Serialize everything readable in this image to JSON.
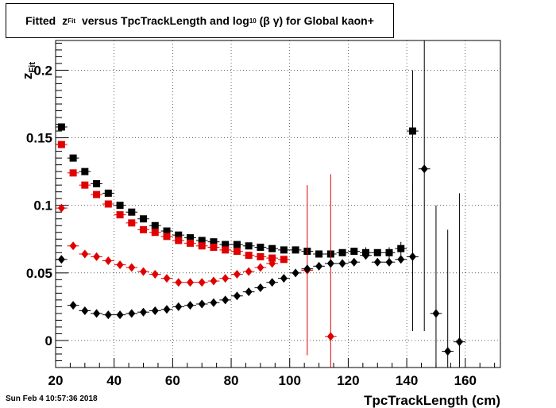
{
  "title": {
    "part1": "Fitted",
    "var": "z",
    "var_sub": "Fit",
    "part2": "versus TpcTrackLength and log",
    "log_sub": "10",
    "part3": "(β γ) for Global kaon+"
  },
  "datestamp": "Sun Feb  4 10:57:36 2018",
  "colors": {
    "black": "#000000",
    "red": "#e00000"
  },
  "chart_data": {
    "type": "scatter",
    "title": "Fitted zFit versus TpcTrackLength and log10 (β γ) for Global kaon+",
    "xlabel": "TpcTrackLength (cm)",
    "ylabel": "z",
    "ylabel_sub": "Fit",
    "xlim": [
      20,
      172
    ],
    "ylim": [
      -0.02,
      0.222
    ],
    "grid": true,
    "x_ticks": [
      20,
      40,
      60,
      80,
      100,
      120,
      140,
      160
    ],
    "y_ticks": [
      0,
      0.05,
      0.1,
      0.15,
      0.2
    ],
    "y_tick_labels": [
      "0",
      "0.05",
      "0.1",
      "0.15",
      "0.2"
    ],
    "series": [
      {
        "marker": "square",
        "color": "#000000",
        "x": [
          22,
          26,
          30,
          34,
          38,
          42,
          46,
          50,
          54,
          58,
          62,
          66,
          70,
          74,
          78,
          82,
          86,
          90,
          94,
          98,
          102,
          106,
          110,
          114,
          118,
          122,
          126,
          130,
          134,
          138,
          142
        ],
        "y": [
          0.158,
          0.135,
          0.125,
          0.116,
          0.109,
          0.1,
          0.095,
          0.09,
          0.085,
          0.081,
          0.078,
          0.076,
          0.074,
          0.073,
          0.071,
          0.071,
          0.07,
          0.069,
          0.068,
          0.067,
          0.067,
          0.066,
          0.064,
          0.064,
          0.065,
          0.066,
          0.065,
          0.065,
          0.065,
          0.068,
          0.155
        ],
        "err": [
          0,
          0,
          0,
          0,
          0,
          0,
          0,
          0,
          0,
          0,
          0,
          0,
          0,
          0,
          0,
          0,
          0,
          0,
          0,
          0,
          0,
          0,
          0,
          0,
          0,
          0,
          0.004,
          0,
          0.004,
          0.005,
          0.045
        ]
      },
      {
        "marker": "square",
        "color": "#e00000",
        "x": [
          22,
          26,
          30,
          34,
          38,
          42,
          46,
          50,
          54,
          58,
          62,
          66,
          70,
          74,
          78,
          82,
          86,
          90,
          94,
          98
        ],
        "y": [
          0.145,
          0.124,
          0.115,
          0.108,
          0.101,
          0.093,
          0.087,
          0.082,
          0.08,
          0.077,
          0.074,
          0.072,
          0.07,
          0.069,
          0.067,
          0.066,
          0.063,
          0.062,
          0.061,
          0.06
        ],
        "err": [
          0,
          0,
          0,
          0,
          0,
          0,
          0,
          0,
          0,
          0,
          0,
          0,
          0,
          0,
          0,
          0,
          0,
          0,
          0,
          0
        ]
      },
      {
        "marker": "diamond",
        "color": "#e00000",
        "x": [
          22,
          26,
          30,
          34,
          38,
          42,
          46,
          50,
          54,
          58,
          62,
          66,
          70,
          74,
          78,
          82,
          86,
          90,
          94,
          106,
          114
        ],
        "y": [
          0.098,
          0.07,
          0.064,
          0.062,
          0.059,
          0.056,
          0.054,
          0.051,
          0.049,
          0.046,
          0.043,
          0.043,
          0.043,
          0.044,
          0.046,
          0.049,
          0.051,
          0.054,
          0.057,
          0.052,
          0.003
        ],
        "err": [
          0,
          0,
          0,
          0,
          0,
          0,
          0,
          0,
          0,
          0,
          0,
          0,
          0,
          0,
          0,
          0,
          0,
          0,
          0,
          0.063,
          0.12
        ]
      },
      {
        "marker": "diamond",
        "color": "#000000",
        "x": [
          22,
          26,
          30,
          34,
          38,
          42,
          46,
          50,
          54,
          58,
          62,
          66,
          70,
          74,
          78,
          82,
          86,
          90,
          94,
          98,
          102,
          106,
          110,
          114,
          118,
          122,
          126,
          130,
          134,
          138,
          142,
          146,
          150,
          154,
          158
        ],
        "y": [
          0.06,
          0.026,
          0.022,
          0.02,
          0.019,
          0.019,
          0.02,
          0.021,
          0.022,
          0.023,
          0.025,
          0.026,
          0.027,
          0.028,
          0.03,
          0.033,
          0.036,
          0.039,
          0.043,
          0.046,
          0.05,
          0.053,
          0.055,
          0.057,
          0.057,
          0.058,
          0.063,
          0.058,
          0.058,
          0.06,
          0.062,
          0.127,
          0.02,
          -0.008,
          -0.001
        ],
        "err": [
          0,
          0,
          0,
          0,
          0,
          0,
          0,
          0,
          0,
          0,
          0,
          0,
          0,
          0,
          0,
          0,
          0,
          0,
          0,
          0,
          0,
          0,
          0,
          0,
          0,
          0,
          0,
          0,
          0,
          0,
          0.055,
          0.12,
          0.08,
          0.09,
          0.11
        ]
      }
    ]
  }
}
